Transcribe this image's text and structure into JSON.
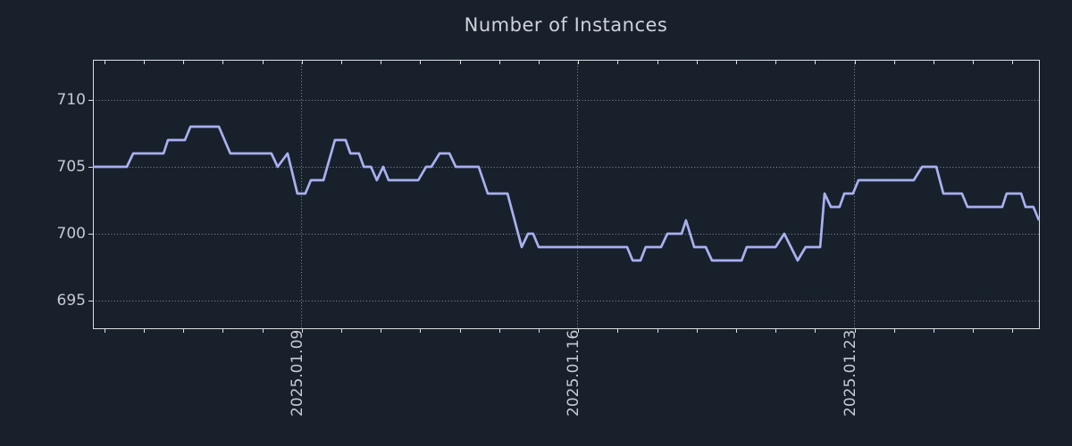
{
  "title": "Number of Instances",
  "colors": {
    "background": "#18202c",
    "line": "#a8b0f0",
    "grid": "#8b909a",
    "axis_border": "#dcdfe3",
    "tick_text": "#c6cad1",
    "title_text": "#cfd3da"
  },
  "chart_data": {
    "type": "line",
    "title": "Number of Instances",
    "xlabel": "",
    "ylabel": "",
    "grid": "dotted",
    "legend": "none",
    "y_ticks": [
      695,
      700,
      705,
      710
    ],
    "ylim": [
      692.93,
      713.0
    ],
    "x_range_days": [
      0,
      23.96
    ],
    "x_ticks_major": [
      {
        "label": "2025.01.09",
        "x": 5.27
      },
      {
        "label": "2025.01.16",
        "x": 12.27
      },
      {
        "label": "2025.01.23",
        "x": 19.27
      }
    ],
    "x_ticks_minor": {
      "start": 0.29,
      "step": 1,
      "count": 24
    },
    "series": [
      {
        "name": "instances",
        "color": "#a8b0f0",
        "points": [
          [
            0.0,
            705
          ],
          [
            0.86,
            705
          ],
          [
            1.02,
            706
          ],
          [
            1.79,
            706
          ],
          [
            1.9,
            707
          ],
          [
            2.33,
            707
          ],
          [
            2.47,
            708
          ],
          [
            3.19,
            708
          ],
          [
            3.48,
            706
          ],
          [
            4.52,
            706
          ],
          [
            4.68,
            705
          ],
          [
            4.93,
            706
          ],
          [
            5.18,
            703
          ],
          [
            5.38,
            703
          ],
          [
            5.52,
            704
          ],
          [
            5.84,
            704
          ],
          [
            6.13,
            707
          ],
          [
            6.4,
            707
          ],
          [
            6.52,
            706
          ],
          [
            6.74,
            706
          ],
          [
            6.86,
            705
          ],
          [
            7.04,
            705
          ],
          [
            7.19,
            704
          ],
          [
            7.35,
            705
          ],
          [
            7.49,
            704
          ],
          [
            8.24,
            704
          ],
          [
            8.44,
            705
          ],
          [
            8.57,
            705
          ],
          [
            8.78,
            706
          ],
          [
            9.03,
            706
          ],
          [
            9.19,
            705
          ],
          [
            9.77,
            705
          ],
          [
            10.0,
            703
          ],
          [
            10.5,
            703
          ],
          [
            10.86,
            699
          ],
          [
            11.02,
            700
          ],
          [
            11.15,
            700
          ],
          [
            11.29,
            699
          ],
          [
            13.53,
            699
          ],
          [
            13.67,
            698
          ],
          [
            13.87,
            698
          ],
          [
            14.0,
            699
          ],
          [
            14.39,
            699
          ],
          [
            14.55,
            700
          ],
          [
            14.91,
            700
          ],
          [
            15.02,
            701
          ],
          [
            15.23,
            699
          ],
          [
            15.52,
            699
          ],
          [
            15.68,
            698
          ],
          [
            16.43,
            698
          ],
          [
            16.56,
            699
          ],
          [
            17.29,
            699
          ],
          [
            17.51,
            700
          ],
          [
            17.85,
            698
          ],
          [
            18.05,
            699
          ],
          [
            18.42,
            699
          ],
          [
            18.53,
            703
          ],
          [
            18.69,
            702
          ],
          [
            18.91,
            702
          ],
          [
            19.03,
            703
          ],
          [
            19.25,
            703
          ],
          [
            19.39,
            704
          ],
          [
            20.79,
            704
          ],
          [
            21.0,
            705
          ],
          [
            21.36,
            705
          ],
          [
            21.54,
            703
          ],
          [
            22.01,
            703
          ],
          [
            22.15,
            702
          ],
          [
            23.03,
            702
          ],
          [
            23.14,
            703
          ],
          [
            23.51,
            703
          ],
          [
            23.62,
            702
          ],
          [
            23.82,
            702
          ],
          [
            23.96,
            701
          ]
        ]
      }
    ]
  }
}
